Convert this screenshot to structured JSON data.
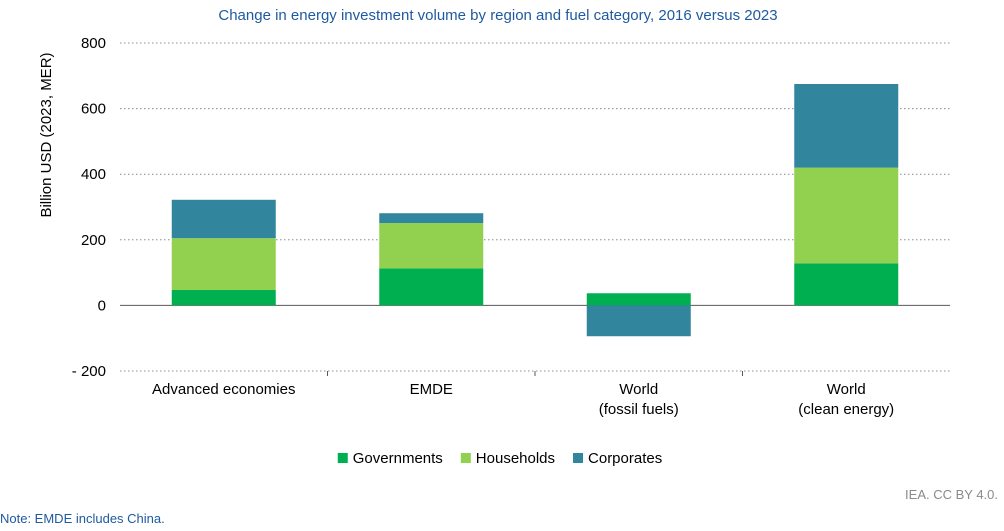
{
  "chart_data": {
    "type": "bar",
    "stacked": true,
    "title": "Change in energy investment volume by region and fuel category, 2016 versus 2023",
    "ylabel": "Billion USD (2023, MER)",
    "xlabel": "",
    "ylim": [
      -200,
      800
    ],
    "yticks": [
      -200,
      0,
      200,
      400,
      600,
      800
    ],
    "ytick_labels": [
      "- 200",
      "0",
      "200",
      "400",
      "600",
      "800"
    ],
    "categories": [
      [
        "Advanced economies"
      ],
      [
        "EMDE"
      ],
      [
        "World",
        "(fossil fuels)"
      ],
      [
        "World",
        "(clean energy)"
      ]
    ],
    "series": [
      {
        "name": "Governments",
        "color": "#00b050",
        "values": [
          47,
          113,
          37,
          128
        ]
      },
      {
        "name": "Households",
        "color": "#92d050",
        "values": [
          158,
          138,
          0,
          292
        ]
      },
      {
        "name": "Corporates",
        "color": "#31859c",
        "values": [
          117,
          30,
          -94,
          255
        ]
      }
    ],
    "grid": true,
    "legend_position": "bottom"
  },
  "footer": {
    "source": "IEA. CC BY 4.0.",
    "note": "Note: EMDE includes China."
  }
}
